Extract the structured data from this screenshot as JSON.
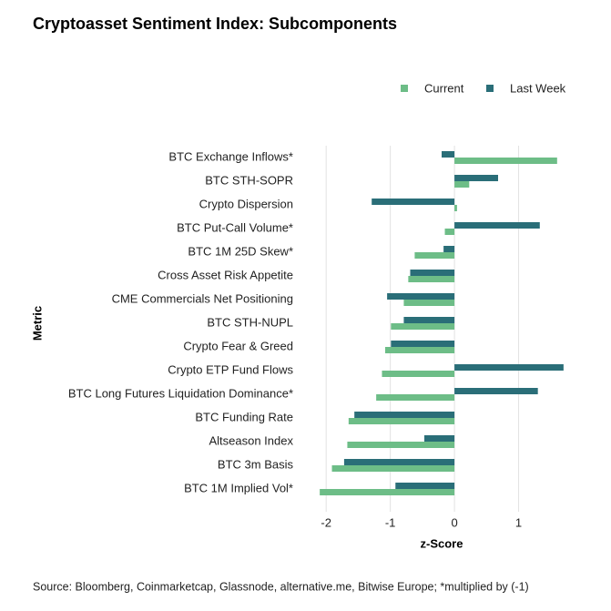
{
  "chart_data": {
    "type": "hbar",
    "title": "Cryptoasset Sentiment Index: Subcomponents",
    "x_label": "z-Score",
    "y_label": "Metric",
    "source": "Source: Bloomberg, Coinmarketcap, Glassnode, alternative.me, Bitwise Europe; *multiplied by (-1)",
    "categories": [
      "BTC Exchange Inflows*",
      "BTC STH-SOPR",
      "Crypto Dispersion",
      "BTC Put-Call Volume*",
      "BTC 1M 25D Skew*",
      "Cross Asset Risk Appetite",
      "CME Commercials Net Positioning",
      "BTC STH-NUPL",
      "Crypto Fear & Greed",
      "Crypto ETP Fund Flows",
      "BTC Long Futures Liquidation Dominance*",
      "BTC Funding Rate",
      "Altseason Index",
      "BTC 3m Basis",
      "BTC 1M Implied Vol*"
    ],
    "series": [
      {
        "name": "Current",
        "color": "#6dbd87",
        "values": [
          1.6,
          0.23,
          0.04,
          -0.15,
          -0.62,
          -0.72,
          -0.79,
          -0.99,
          -1.08,
          -1.13,
          -1.22,
          -1.65,
          -1.67,
          -1.91,
          -2.1
        ]
      },
      {
        "name": "Last Week",
        "color": "#2a6e78",
        "values": [
          -0.2,
          0.68,
          -1.29,
          1.33,
          -0.17,
          -0.69,
          -1.05,
          -0.79,
          -0.99,
          1.7,
          1.3,
          -1.56,
          -0.47,
          -1.72,
          -0.92
        ]
      }
    ],
    "xlim": [
      -2.4,
      2.0
    ],
    "xticks": [
      -2,
      -1,
      0,
      1
    ],
    "grid": true,
    "legend": "top-right"
  }
}
